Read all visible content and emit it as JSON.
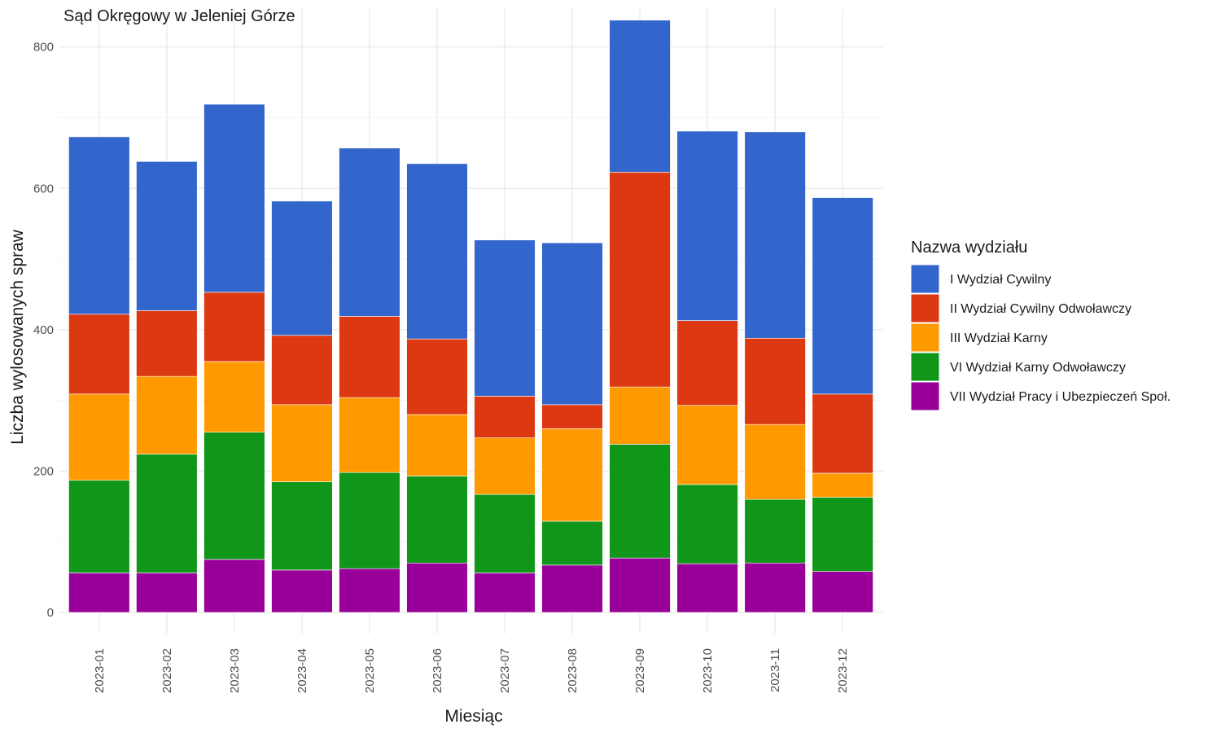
{
  "chart_data": {
    "type": "bar",
    "stacked": true,
    "title": "Sąd Okręgowy w Jeleniej Górze",
    "xlabel": "Miesiąc",
    "ylabel": "Liczba wylosowanych spraw",
    "ylim": [
      -30,
      855
    ],
    "yticks": [
      0,
      200,
      400,
      600,
      800
    ],
    "grid": true,
    "legend_title": "Nazwa wydziału",
    "legend_position": "right",
    "categories": [
      "2023-01",
      "2023-02",
      "2023-03",
      "2023-04",
      "2023-05",
      "2023-06",
      "2023-07",
      "2023-08",
      "2023-09",
      "2023-10",
      "2023-11",
      "2023-12"
    ],
    "series": [
      {
        "name": "VII Wydział Pracy i Ubezpieczeń Społ.",
        "color": "#990099",
        "values": [
          56,
          56,
          75,
          60,
          62,
          70,
          56,
          67,
          77,
          69,
          70,
          58
        ]
      },
      {
        "name": "VI Wydział Karny Odwoławczy",
        "color": "#109618",
        "values": [
          131,
          168,
          180,
          125,
          136,
          123,
          111,
          62,
          161,
          112,
          90,
          105
        ]
      },
      {
        "name": "III Wydział Karny",
        "color": "#FF9900",
        "values": [
          122,
          110,
          100,
          109,
          106,
          87,
          80,
          131,
          81,
          112,
          106,
          34
        ]
      },
      {
        "name": "II Wydział Cywilny Odwoławczy",
        "color": "#DC3912",
        "values": [
          113,
          93,
          98,
          98,
          115,
          107,
          59,
          34,
          304,
          120,
          122,
          112
        ]
      },
      {
        "name": "I Wydział Cywilny",
        "color": "#3366CC",
        "values": [
          251,
          211,
          266,
          190,
          238,
          248,
          221,
          229,
          215,
          268,
          292,
          278
        ]
      }
    ]
  }
}
